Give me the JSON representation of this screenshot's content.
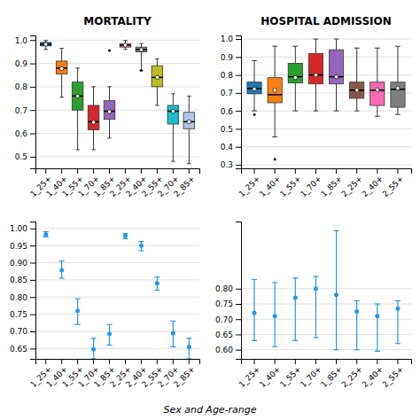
{
  "chart_data": [
    {
      "type": "box",
      "title": "MORTALITY",
      "categories": [
        "1_25+",
        "1_40+",
        "1_55+",
        "1_70+",
        "1_85+",
        "2_25+",
        "2_40+",
        "2_55+",
        "2_70+",
        "2_85+"
      ],
      "colors": [
        "#1f77b4",
        "#ff7f0e",
        "#2ca02c",
        "#d62728",
        "#9467bd",
        "#ff69b4",
        "#7f7f7f",
        "#bcbd22",
        "#17becf",
        "#aec7e8"
      ],
      "q1": [
        0.975,
        0.855,
        0.7,
        0.615,
        0.66,
        0.97,
        0.95,
        0.8,
        0.64,
        0.62
      ],
      "median": [
        0.982,
        0.88,
        0.76,
        0.65,
        0.695,
        0.978,
        0.96,
        0.84,
        0.695,
        0.65
      ],
      "q3": [
        0.99,
        0.91,
        0.82,
        0.72,
        0.74,
        0.985,
        0.97,
        0.89,
        0.72,
        0.69
      ],
      "mean": [
        0.982,
        0.878,
        0.76,
        0.648,
        0.693,
        0.978,
        0.959,
        0.84,
        0.695,
        0.65
      ],
      "whisker_low": [
        0.96,
        0.755,
        0.53,
        0.53,
        0.58,
        0.96,
        0.87,
        0.72,
        0.48,
        0.47
      ],
      "whisker_high": [
        0.998,
        0.965,
        0.88,
        0.8,
        0.8,
        0.998,
        0.985,
        0.92,
        0.77,
        0.76
      ],
      "fliers": [
        null,
        null,
        null,
        null,
        0.955,
        null,
        0.87,
        null,
        null,
        null
      ],
      "ylim": [
        0.45,
        1.02
      ],
      "yticks": [
        0.5,
        0.6,
        0.7,
        0.8,
        0.9,
        {
          "value": 1.0,
          "label": "1.0"
        }
      ],
      "grid": true
    },
    {
      "type": "box",
      "title": "HOSPITAL ADMISSION",
      "categories": [
        "1_25+",
        "1_40+",
        "1_55+",
        "1_70+",
        "1_85+",
        "2_25+",
        "2_40+",
        "2_55+"
      ],
      "colors": [
        "#1f77b4",
        "#ff7f0e",
        "#2ca02c",
        "#d62728",
        "#9467bd",
        "#8c564b",
        "#ff69b4",
        "#7f7f7f"
      ],
      "q1": [
        0.695,
        0.645,
        0.755,
        0.75,
        0.75,
        0.67,
        0.63,
        0.62
      ],
      "median": [
        0.725,
        0.69,
        0.79,
        0.8,
        0.79,
        0.715,
        0.715,
        0.72
      ],
      "q3": [
        0.76,
        0.785,
        0.865,
        0.92,
        0.94,
        0.76,
        0.76,
        0.76
      ],
      "mean": [
        0.722,
        0.715,
        0.785,
        0.8,
        0.79,
        0.715,
        0.718,
        0.725
      ],
      "whisker_low": [
        0.6,
        0.455,
        0.6,
        0.6,
        0.6,
        0.6,
        0.57,
        0.58
      ],
      "whisker_high": [
        0.88,
        0.96,
        0.96,
        1.0,
        1.0,
        0.95,
        0.95,
        0.96
      ],
      "fliers": [
        0.58,
        0.33,
        null,
        null,
        null,
        null,
        null,
        null
      ],
      "ylim": [
        0.28,
        1.02
      ],
      "yticks": [
        0.3,
        0.4,
        0.5,
        0.6,
        0.7,
        0.8,
        0.9,
        {
          "value": 1.0,
          "label": "1.0"
        }
      ],
      "grid": true
    },
    {
      "type": "errorbar",
      "categories": [
        "1_25+",
        "1_40+",
        "1_55+",
        "1_70+",
        "1_85+",
        "2_25+",
        "2_40+",
        "2_55+",
        "2_70+",
        "2_85+"
      ],
      "values": [
        0.982,
        0.878,
        0.76,
        0.648,
        0.693,
        0.978,
        0.95,
        0.84,
        0.695,
        0.655
      ],
      "lower": [
        0.975,
        0.855,
        0.72,
        0.62,
        0.66,
        0.97,
        0.935,
        0.82,
        0.655,
        0.62
      ],
      "upper": [
        0.99,
        0.905,
        0.795,
        0.68,
        0.72,
        0.985,
        0.962,
        0.858,
        0.73,
        0.68
      ],
      "color": "#2196F3",
      "ylim": [
        0.62,
        1.02
      ],
      "yticks": [
        0.65,
        {
          "value": 0.7,
          "label": "0.70"
        },
        0.75,
        {
          "value": 0.8,
          "label": "0.80"
        },
        0.85,
        {
          "value": 0.9,
          "label": "0.90"
        },
        0.95,
        {
          "value": 1.0,
          "label": "1.00"
        }
      ],
      "grid": true
    },
    {
      "type": "errorbar",
      "categories": [
        "1_25+",
        "1_40+",
        "1_55+",
        "1_70+",
        "1_85+",
        "2_25+",
        "2_40+",
        "2_55+"
      ],
      "values": [
        0.72,
        0.71,
        0.77,
        0.8,
        0.78,
        0.725,
        0.71,
        0.735
      ],
      "lower": [
        0.63,
        0.61,
        0.63,
        0.64,
        0.6,
        0.6,
        0.595,
        0.62
      ],
      "upper": [
        0.83,
        0.82,
        0.835,
        0.84,
        0.99,
        0.76,
        0.75,
        0.76
      ],
      "color": "#2196F3",
      "ylim": [
        0.57,
        1.02
      ],
      "yticks": [
        {
          "value": 0.6,
          "label": "0.60"
        },
        0.65,
        {
          "value": 0.7,
          "label": "0.70"
        },
        0.75,
        {
          "value": 0.8,
          "label": "0.80"
        }
      ],
      "grid": true
    }
  ],
  "x_label": "Sex and Age-range"
}
